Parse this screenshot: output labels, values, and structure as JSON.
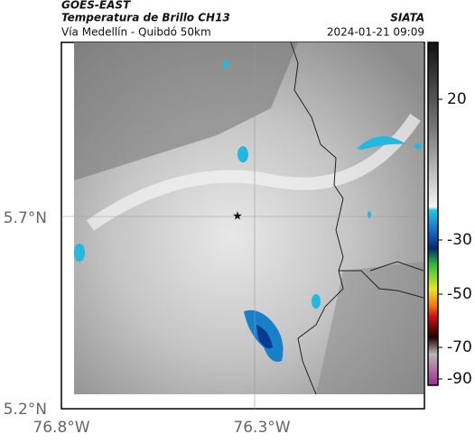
{
  "header": {
    "title": "GOES-EAST",
    "subtitle": "Temperatura de Brillo CH13",
    "route": "Vía Medellín - Quibdó 50km",
    "source": "SIATA",
    "timestamp": "2024-01-21 09:09"
  },
  "map": {
    "lat_labels": [
      "5.7°N",
      "5.2°N"
    ],
    "lon_labels": [
      "76.8°W",
      "76.3°W"
    ]
  },
  "colorbar": {
    "ticks": [
      20,
      -30,
      -50,
      -70,
      -90
    ]
  }
}
